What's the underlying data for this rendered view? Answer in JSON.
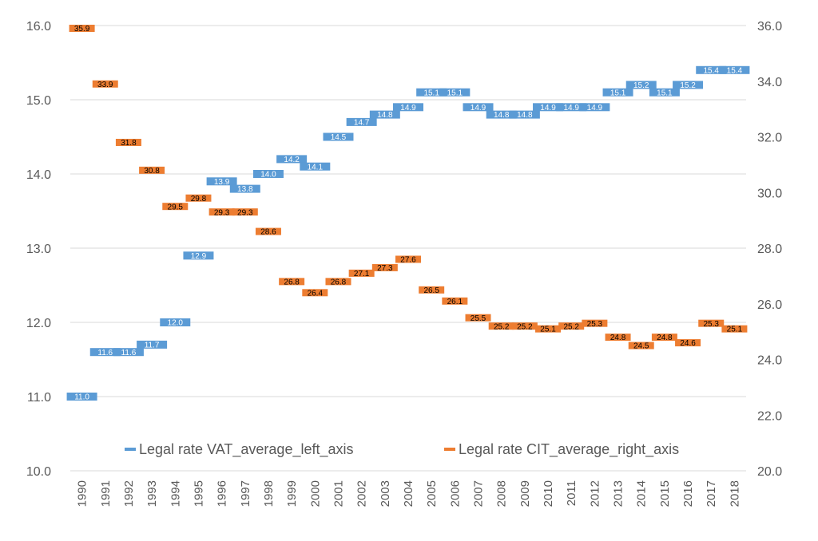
{
  "chart_data": {
    "type": "line",
    "categories": [
      "1990",
      "1991",
      "1992",
      "1993",
      "1994",
      "1995",
      "1996",
      "1997",
      "1998",
      "1999",
      "2000",
      "2001",
      "2002",
      "2003",
      "2004",
      "2005",
      "2006",
      "2007",
      "2008",
      "2009",
      "2010",
      "2011",
      "2012",
      "2013",
      "2014",
      "2015",
      "2016",
      "2017",
      "2018"
    ],
    "series": [
      {
        "name": "Legal rate VAT_average_left_axis",
        "axis": "left",
        "color": "#5b9bd5",
        "label_color": "#ffffff",
        "values": [
          11.0,
          11.6,
          11.6,
          11.7,
          12.0,
          12.9,
          13.9,
          13.8,
          14.0,
          14.2,
          14.1,
          14.5,
          14.7,
          14.8,
          14.9,
          15.1,
          15.1,
          14.9,
          14.8,
          14.8,
          14.9,
          14.9,
          14.9,
          15.1,
          15.2,
          15.1,
          15.2,
          15.4,
          15.4
        ]
      },
      {
        "name": "Legal rate CIT_average_right_axis",
        "axis": "right",
        "color": "#ed7d31",
        "label_color": "#000000",
        "values": [
          35.9,
          33.9,
          31.8,
          30.8,
          29.5,
          29.8,
          29.3,
          29.3,
          28.6,
          26.8,
          26.4,
          26.8,
          27.1,
          27.3,
          27.6,
          26.5,
          26.1,
          25.5,
          25.2,
          25.2,
          25.1,
          25.2,
          25.3,
          24.8,
          24.5,
          24.8,
          24.6,
          25.3,
          25.1
        ]
      }
    ],
    "y_left": {
      "range": [
        10.0,
        16.0
      ],
      "ticks": [
        "10.0",
        "11.0",
        "12.0",
        "13.0",
        "14.0",
        "15.0",
        "16.0"
      ]
    },
    "y_right": {
      "range": [
        20.0,
        36.0
      ],
      "ticks": [
        "20.0",
        "22.0",
        "24.0",
        "26.0",
        "28.0",
        "30.0",
        "32.0",
        "34.0",
        "36.0"
      ]
    },
    "data_labels": {
      "left": [
        "11.0",
        "11.6",
        "11.6",
        "11.7",
        "12.0",
        "12.9",
        "13.9",
        "13.8",
        "14.0",
        "14.2",
        "14.1",
        "14.5",
        "14.7",
        "14.8",
        "14.9",
        "15.1",
        "15.1",
        "14.9",
        "14.8",
        "14.8",
        "14.9",
        "14.9",
        "14.9",
        "15.1",
        "15.2",
        "15.1",
        "15.2",
        "15.4",
        "15.4"
      ],
      "right": [
        "35.9",
        "33.9",
        "31.8",
        "30.8",
        "29.5",
        "29.8",
        "29.3",
        "29.3",
        "28.6",
        "26.8",
        "26.4",
        "26.8",
        "27.1",
        "27.3",
        "27.6",
        "26.5",
        "26.1",
        "25.5",
        "25.2",
        "25.2",
        "25.1",
        "25.2",
        "25.3",
        "24.8",
        "24.5",
        "24.8",
        "24.6",
        "25.3",
        "25.1"
      ]
    },
    "grid": true,
    "legend_position": "bottom-inside"
  }
}
